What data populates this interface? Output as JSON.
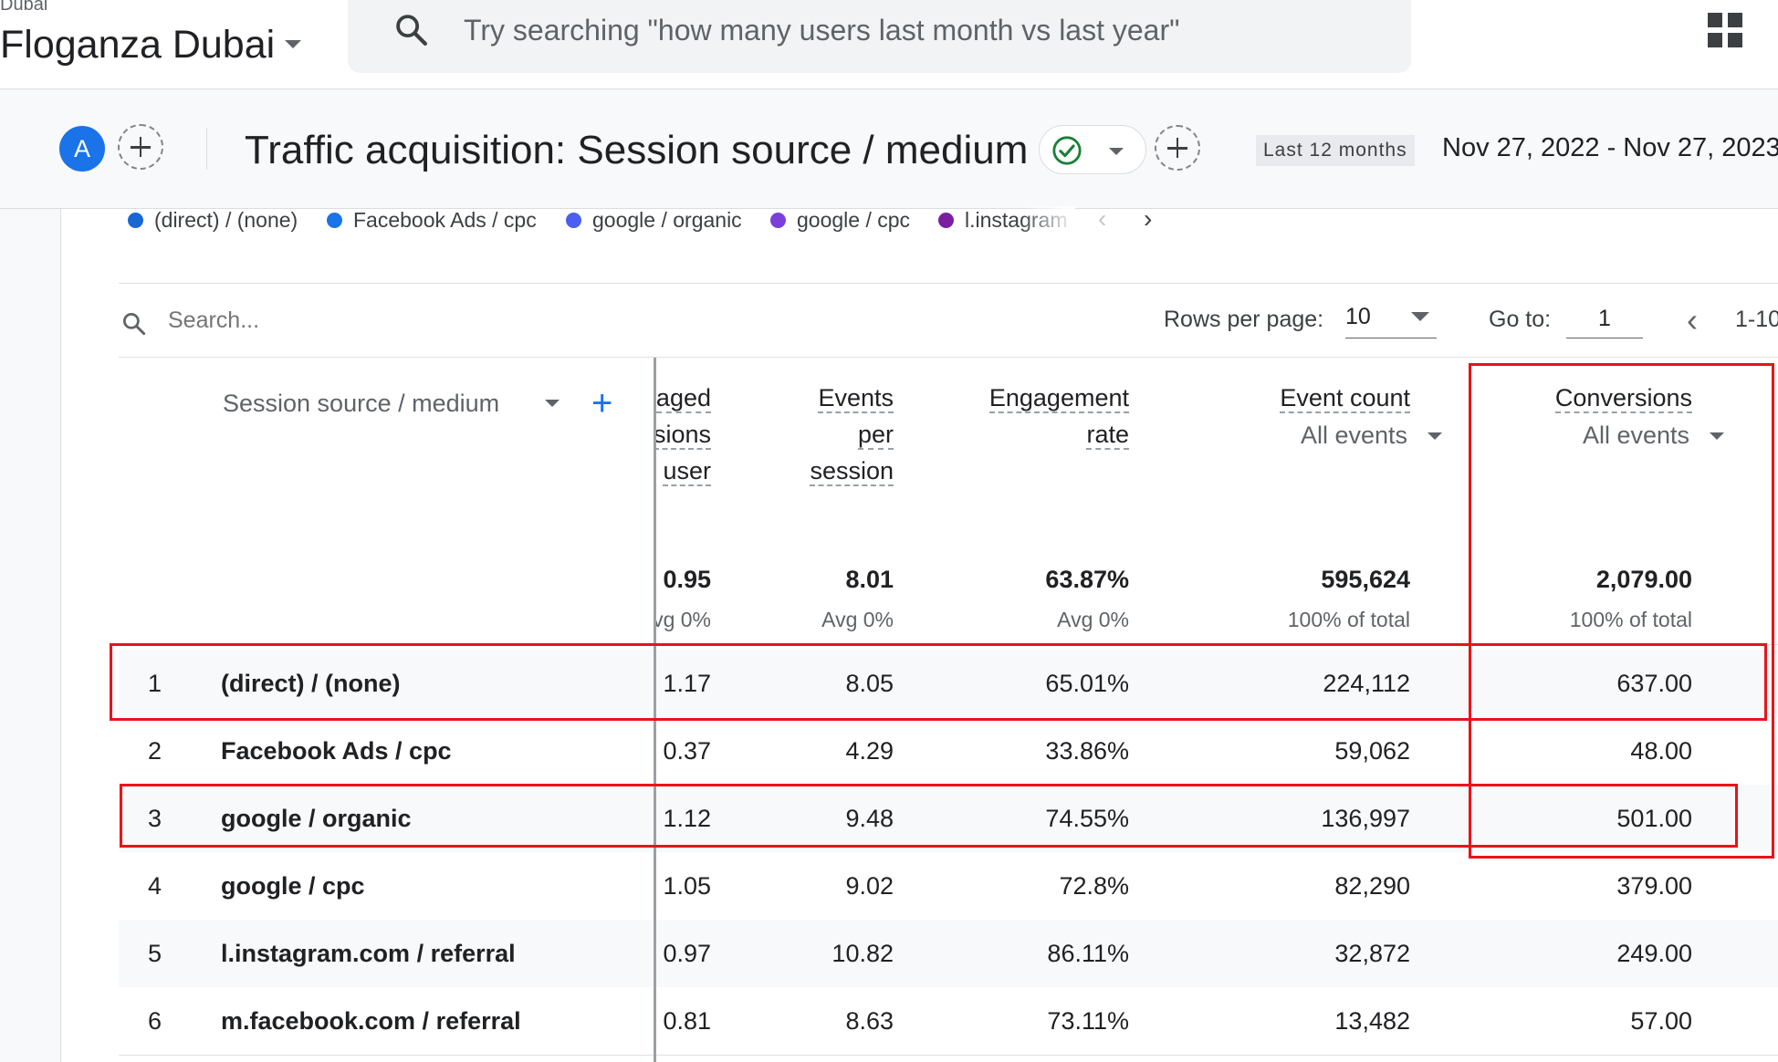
{
  "header": {
    "account_small": "Dubai",
    "property_name": "Floganza Dubai",
    "search_placeholder": "Try searching \"how many users last month vs last year\""
  },
  "report": {
    "avatar_letter": "A",
    "title": "Traffic acquisition: Session source / medium",
    "date_label": "Last 12 months",
    "date_range": "Nov 27, 2022 - Nov 27, 2023"
  },
  "legend": {
    "items": [
      {
        "label": "(direct) / (none)",
        "color": "#1967d2"
      },
      {
        "label": "Facebook Ads / cpc",
        "color": "#1a73e8"
      },
      {
        "label": "google / organic",
        "color": "#4a5ef0"
      },
      {
        "label": "google / cpc",
        "color": "#7b3fdc"
      },
      {
        "label": "l.instagram",
        "color": "#7b1fa2"
      }
    ],
    "prev": "‹",
    "next": "›"
  },
  "toolbar": {
    "search_placeholder": "Search...",
    "rows_per_page_label": "Rows per page:",
    "rows_per_page": "10",
    "goto_label": "Go to:",
    "goto_value": "1",
    "page_range": "1-10"
  },
  "table": {
    "dimension_header": "Session source / medium",
    "columns": [
      {
        "key": "engaged",
        "title_lines": [
          "aged",
          "sions",
          "user"
        ],
        "sub": ""
      },
      {
        "key": "eps",
        "title_lines": [
          "Events",
          "per",
          "session"
        ],
        "sub": ""
      },
      {
        "key": "rate",
        "title_lines": [
          "Engagement",
          "rate"
        ],
        "sub": ""
      },
      {
        "key": "events",
        "title_lines": [
          "Event count"
        ],
        "sub": "All events"
      },
      {
        "key": "conv",
        "title_lines": [
          "Conversions"
        ],
        "sub": "All events"
      }
    ],
    "totals": {
      "engaged": "0.95",
      "engaged_sub": "vg 0%",
      "eps": "8.01",
      "eps_sub": "Avg 0%",
      "rate": "63.87%",
      "rate_sub": "Avg 0%",
      "events": "595,624",
      "events_sub": "100% of total",
      "conv": "2,079.00",
      "conv_sub": "100% of total"
    },
    "rows": [
      {
        "index": "1",
        "source": "(direct) / (none)",
        "engaged": "1.17",
        "eps": "8.05",
        "rate": "65.01%",
        "events": "224,112",
        "conv": "637.00"
      },
      {
        "index": "2",
        "source": "Facebook Ads / cpc",
        "engaged": "0.37",
        "eps": "4.29",
        "rate": "33.86%",
        "events": "59,062",
        "conv": "48.00"
      },
      {
        "index": "3",
        "source": "google / organic",
        "engaged": "1.12",
        "eps": "9.48",
        "rate": "74.55%",
        "events": "136,997",
        "conv": "501.00"
      },
      {
        "index": "4",
        "source": "google / cpc",
        "engaged": "1.05",
        "eps": "9.02",
        "rate": "72.8%",
        "events": "82,290",
        "conv": "379.00"
      },
      {
        "index": "5",
        "source": "l.instagram.com / referral",
        "engaged": "0.97",
        "eps": "10.82",
        "rate": "86.11%",
        "events": "32,872",
        "conv": "249.00"
      },
      {
        "index": "6",
        "source": "m.facebook.com / referral",
        "engaged": "0.81",
        "eps": "8.63",
        "rate": "73.11%",
        "events": "13,482",
        "conv": "57.00"
      }
    ]
  },
  "colors": {
    "accent": "#1a73e8",
    "highlight": "#e8131b",
    "success": "#188038"
  }
}
